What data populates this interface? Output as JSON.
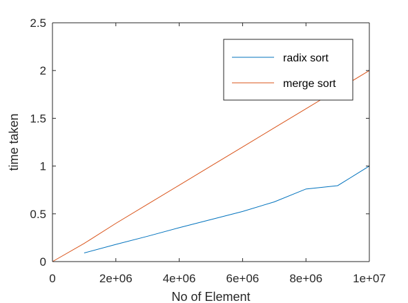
{
  "chart_data": {
    "type": "line",
    "xlabel": "No of Element",
    "ylabel": "time taken",
    "xlim": [
      0,
      10000000
    ],
    "ylim": [
      0,
      2.5
    ],
    "x_ticks": [
      0,
      2000000,
      4000000,
      6000000,
      8000000,
      10000000
    ],
    "x_tick_labels": [
      "0",
      "2e+06",
      "4e+06",
      "6e+06",
      "8e+06",
      "1e+07"
    ],
    "y_ticks": [
      0,
      0.5,
      1,
      1.5,
      2,
      2.5
    ],
    "y_tick_labels": [
      "0",
      "0.5",
      "1",
      "1.5",
      "2",
      "2.5"
    ],
    "grid": false,
    "legend_position": "top-right",
    "series": [
      {
        "name": "radix sort",
        "color": "#0072BD",
        "x": [
          1000000,
          2000000,
          3000000,
          4000000,
          5000000,
          6000000,
          7000000,
          8000000,
          9000000,
          10000000
        ],
        "y": [
          0.09,
          0.18,
          0.265,
          0.355,
          0.44,
          0.525,
          0.625,
          0.76,
          0.795,
          1.0
        ]
      },
      {
        "name": "merge sort",
        "color": "#D95319",
        "x": [
          0,
          1000000,
          2000000,
          3000000,
          4000000,
          5000000,
          6000000,
          7000000,
          8000000,
          9000000,
          10000000
        ],
        "y": [
          0,
          0.19,
          0.4,
          0.6,
          0.8,
          1.0,
          1.2,
          1.4,
          1.6,
          1.8,
          2.0
        ]
      }
    ]
  }
}
